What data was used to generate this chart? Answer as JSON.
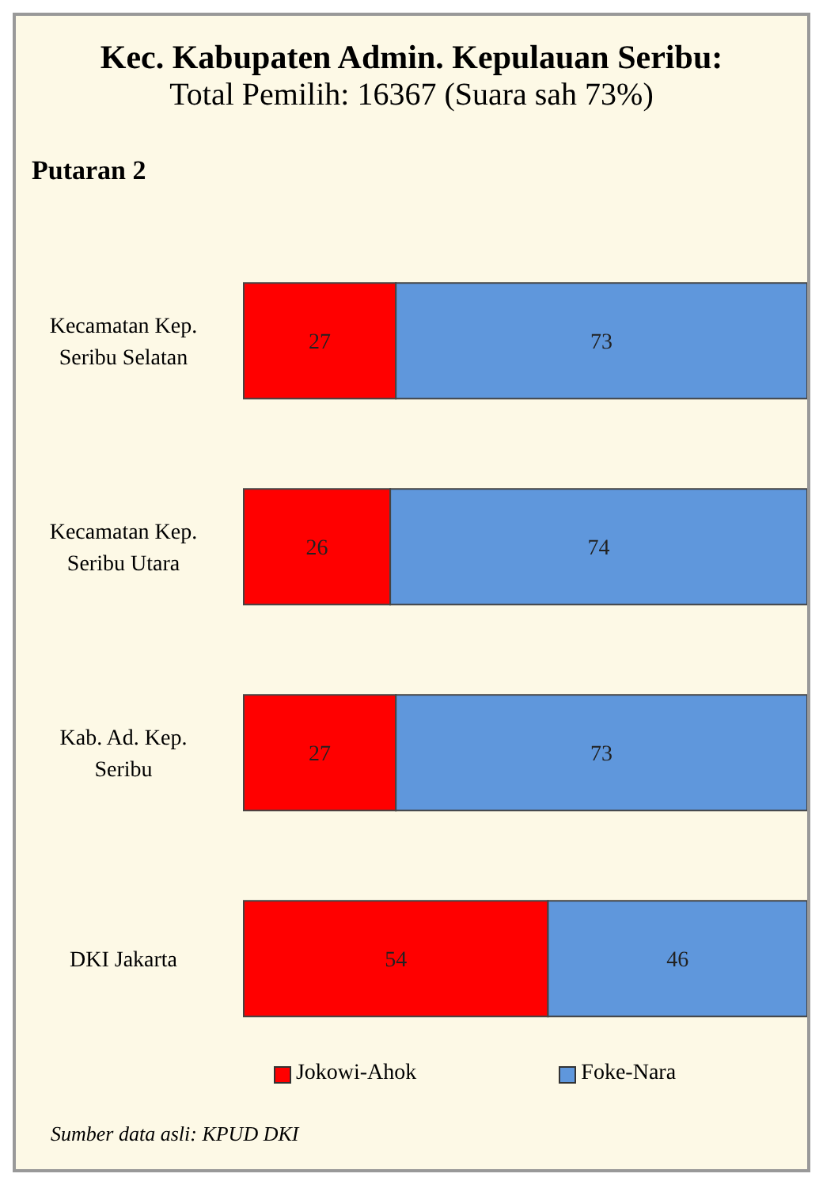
{
  "chart_data": {
    "type": "bar",
    "orientation": "horizontal",
    "stacked": true,
    "title": "Kec. Kabupaten Admin. Kepulauan Seribu:",
    "subtitle": "Total Pemilih: 16367 (Suara sah 73%)",
    "annotations": [
      "Putaran 2",
      "Sumber data asli: KPUD DKI"
    ],
    "categories": [
      "Kecamatan Kep. Seribu Selatan",
      "Kecamatan Kep. Seribu Utara",
      "Kab. Ad. Kep. Seribu",
      "DKI Jakarta"
    ],
    "series": [
      {
        "name": "Jokowi-Ahok",
        "color": "#ff0000",
        "values": [
          27,
          26,
          27,
          54
        ]
      },
      {
        "name": "Foke-Nara",
        "color": "#5f97dc",
        "values": [
          73,
          74,
          73,
          46
        ]
      }
    ],
    "data_labels": true,
    "legend": "bottom",
    "grid": false,
    "tick_labels": "y"
  }
}
